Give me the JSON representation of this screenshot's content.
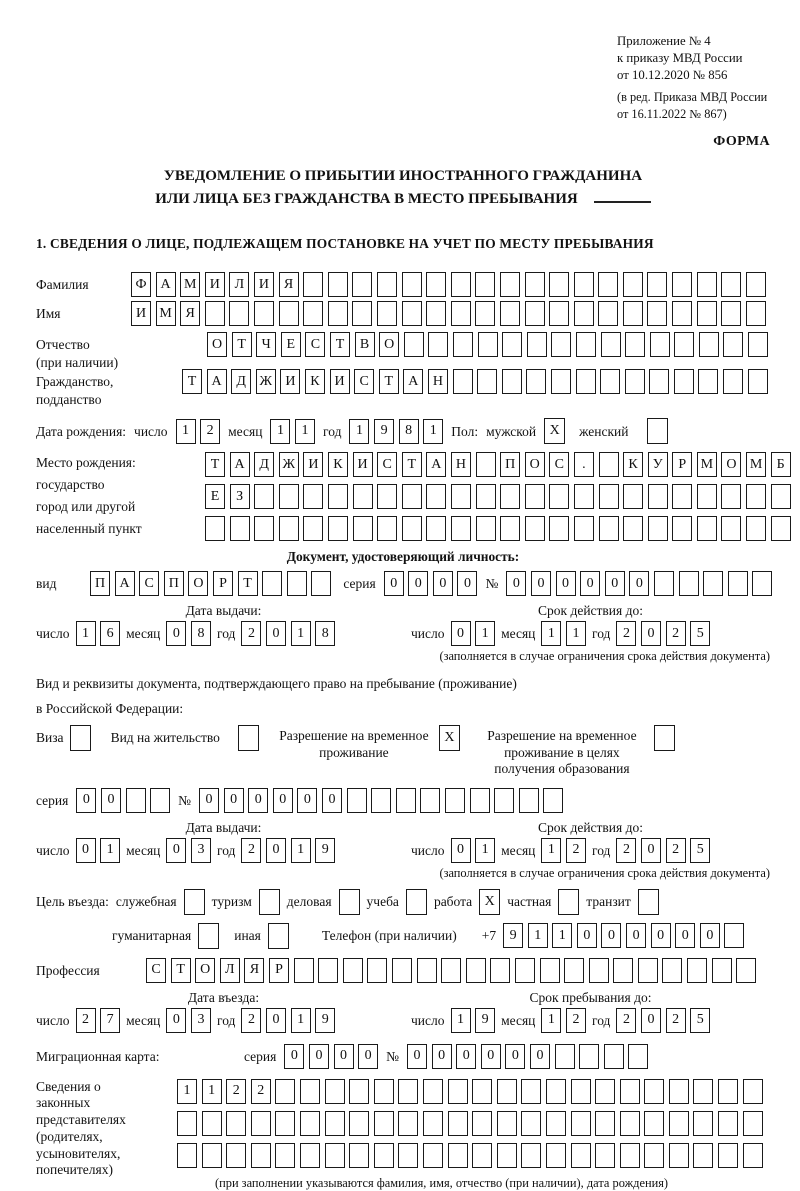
{
  "header": {
    "appendix": [
      "Приложение № 4",
      "к приказу МВД России",
      "от 10.12.2020 № 856"
    ],
    "edition": [
      "(в ред. Приказа МВД России",
      "от 16.11.2022 № 867)"
    ],
    "form_label": "ФОРМА"
  },
  "title": {
    "line1": "УВЕДОМЛЕНИЕ О ПРИБЫТИИ ИНОСТРАННОГО ГРАЖДАНИНА",
    "line2": "ИЛИ ЛИЦА БЕЗ ГРАЖДАНСТВА В МЕСТО ПРЕБЫВАНИЯ"
  },
  "section1_title": "1. СВЕДЕНИЯ О ЛИЦЕ, ПОДЛЕЖАЩЕМ ПОСТАНОВКЕ НА УЧЕТ ПО МЕСТУ ПРЕБЫВАНИЯ",
  "date_labels": {
    "day": "число",
    "month": "месяц",
    "year": "год"
  },
  "rows": {
    "surname": {
      "label": "Фамилия",
      "cells": {
        "total": 26,
        "chars": "ФАМИЛИЯ"
      }
    },
    "name": {
      "label": "Имя",
      "cells": {
        "total": 26,
        "chars": "ИМЯ"
      }
    },
    "patronymic": {
      "label": "Отчество",
      "label2": "(при наличии)",
      "cells": {
        "total": 23,
        "chars": "ОТЧЕСТВО"
      }
    },
    "citizenship": {
      "label": "Гражданство,",
      "label2": "подданство",
      "cells": {
        "total": 24,
        "chars": "ТАДЖИКИСТАН"
      }
    }
  },
  "birth": {
    "label": "Дата рождения:",
    "day": "12",
    "month": "11",
    "year": "1981",
    "gender_label": "Пол:",
    "male_label": "мужской",
    "male_mark": "X",
    "female_label": "женский",
    "female_mark": ""
  },
  "birthplace": {
    "labels": [
      "Место рождения:",
      "государство",
      "город или другой",
      "населенный пункт"
    ],
    "row1": {
      "total": 24,
      "chars": "ТАДЖИКИСТАН ПОС. КУРМОМБ"
    },
    "row2": {
      "total": 24,
      "chars": "ЕЗ"
    },
    "row3": {
      "total": 24,
      "chars": ""
    }
  },
  "identity_doc": {
    "header": "Документ, удостоверяющий личность:",
    "kind_label": "вид",
    "kind": {
      "total": 10,
      "chars": "ПАСПОРТ"
    },
    "series_label": "серия",
    "series": {
      "total": 4,
      "chars": "0000"
    },
    "number_label": "№",
    "number": {
      "total": 11,
      "chars": "000000"
    },
    "issue_title": "Дата выдачи:",
    "issue": {
      "day": "16",
      "month": "08",
      "year": "2018"
    },
    "valid_title": "Срок действия до:",
    "valid": {
      "day": "01",
      "month": "11",
      "year": "2025"
    },
    "note": "(заполняется в случае ограничения срока действия документа)"
  },
  "resid_doc": {
    "line1": "Вид и реквизиты документа, подтверждающего право на пребывание (проживание)",
    "line2": "в Российской Федерации:",
    "options": [
      {
        "label": "Виза",
        "mark": ""
      },
      {
        "label": "Вид на жительство",
        "mark": ""
      },
      {
        "label": "Разрешение на временное проживание",
        "mark": "X"
      },
      {
        "label": "Разрешение на временное проживание в целях получения образования",
        "mark": ""
      }
    ],
    "series_label": "серия",
    "series": {
      "total": 4,
      "chars": "00"
    },
    "number_label": "№",
    "number": {
      "total": 15,
      "chars": "000000"
    },
    "issue_title": "Дата выдачи:",
    "issue": {
      "day": "01",
      "month": "03",
      "year": "2019"
    },
    "valid_title": "Срок действия до:",
    "valid": {
      "day": "01",
      "month": "12",
      "year": "2025"
    },
    "note": "(заполняется в случае ограничения срока действия документа)"
  },
  "purpose": {
    "label": "Цель въезда:",
    "row1": [
      {
        "label": "служебная",
        "mark": ""
      },
      {
        "label": "туризм",
        "mark": ""
      },
      {
        "label": "деловая",
        "mark": ""
      },
      {
        "label": "учеба",
        "mark": ""
      },
      {
        "label": "работа",
        "mark": "X"
      },
      {
        "label": "частная",
        "mark": ""
      },
      {
        "label": "транзит",
        "mark": ""
      }
    ],
    "row2": [
      {
        "label": "гуманитарная",
        "mark": ""
      },
      {
        "label": "иная",
        "mark": ""
      }
    ]
  },
  "phone": {
    "label": "Телефон (при наличии)",
    "prefix": "+7",
    "cells": {
      "total": 10,
      "chars": "911000000"
    }
  },
  "profession": {
    "label": "Профессия",
    "cells": {
      "total": 25,
      "chars": "СТОЛЯР"
    }
  },
  "entry": {
    "entry_title": "Дата въезда:",
    "entry_date": {
      "day": "27",
      "month": "03",
      "year": "2019"
    },
    "stay_title": "Срок пребывания до:",
    "stay_date": {
      "day": "19",
      "month": "12",
      "year": "2025"
    }
  },
  "migration_card": {
    "label": "Миграционная карта:",
    "series_label": "серия",
    "series": {
      "total": 4,
      "chars": "0000"
    },
    "number_label": "№",
    "number": {
      "total": 10,
      "chars": "000000"
    }
  },
  "representatives": {
    "labels": [
      "Сведения о",
      "законных",
      "представителях",
      "(родителях,",
      "усыновителях,",
      "попечителях)"
    ],
    "row1": {
      "total": 24,
      "chars": "1122"
    },
    "row2": {
      "total": 24,
      "chars": ""
    },
    "row3": {
      "total": 24,
      "chars": ""
    },
    "note": "(при заполнении указываются фамилия, имя, отчество (при наличии), дата рождения)"
  }
}
